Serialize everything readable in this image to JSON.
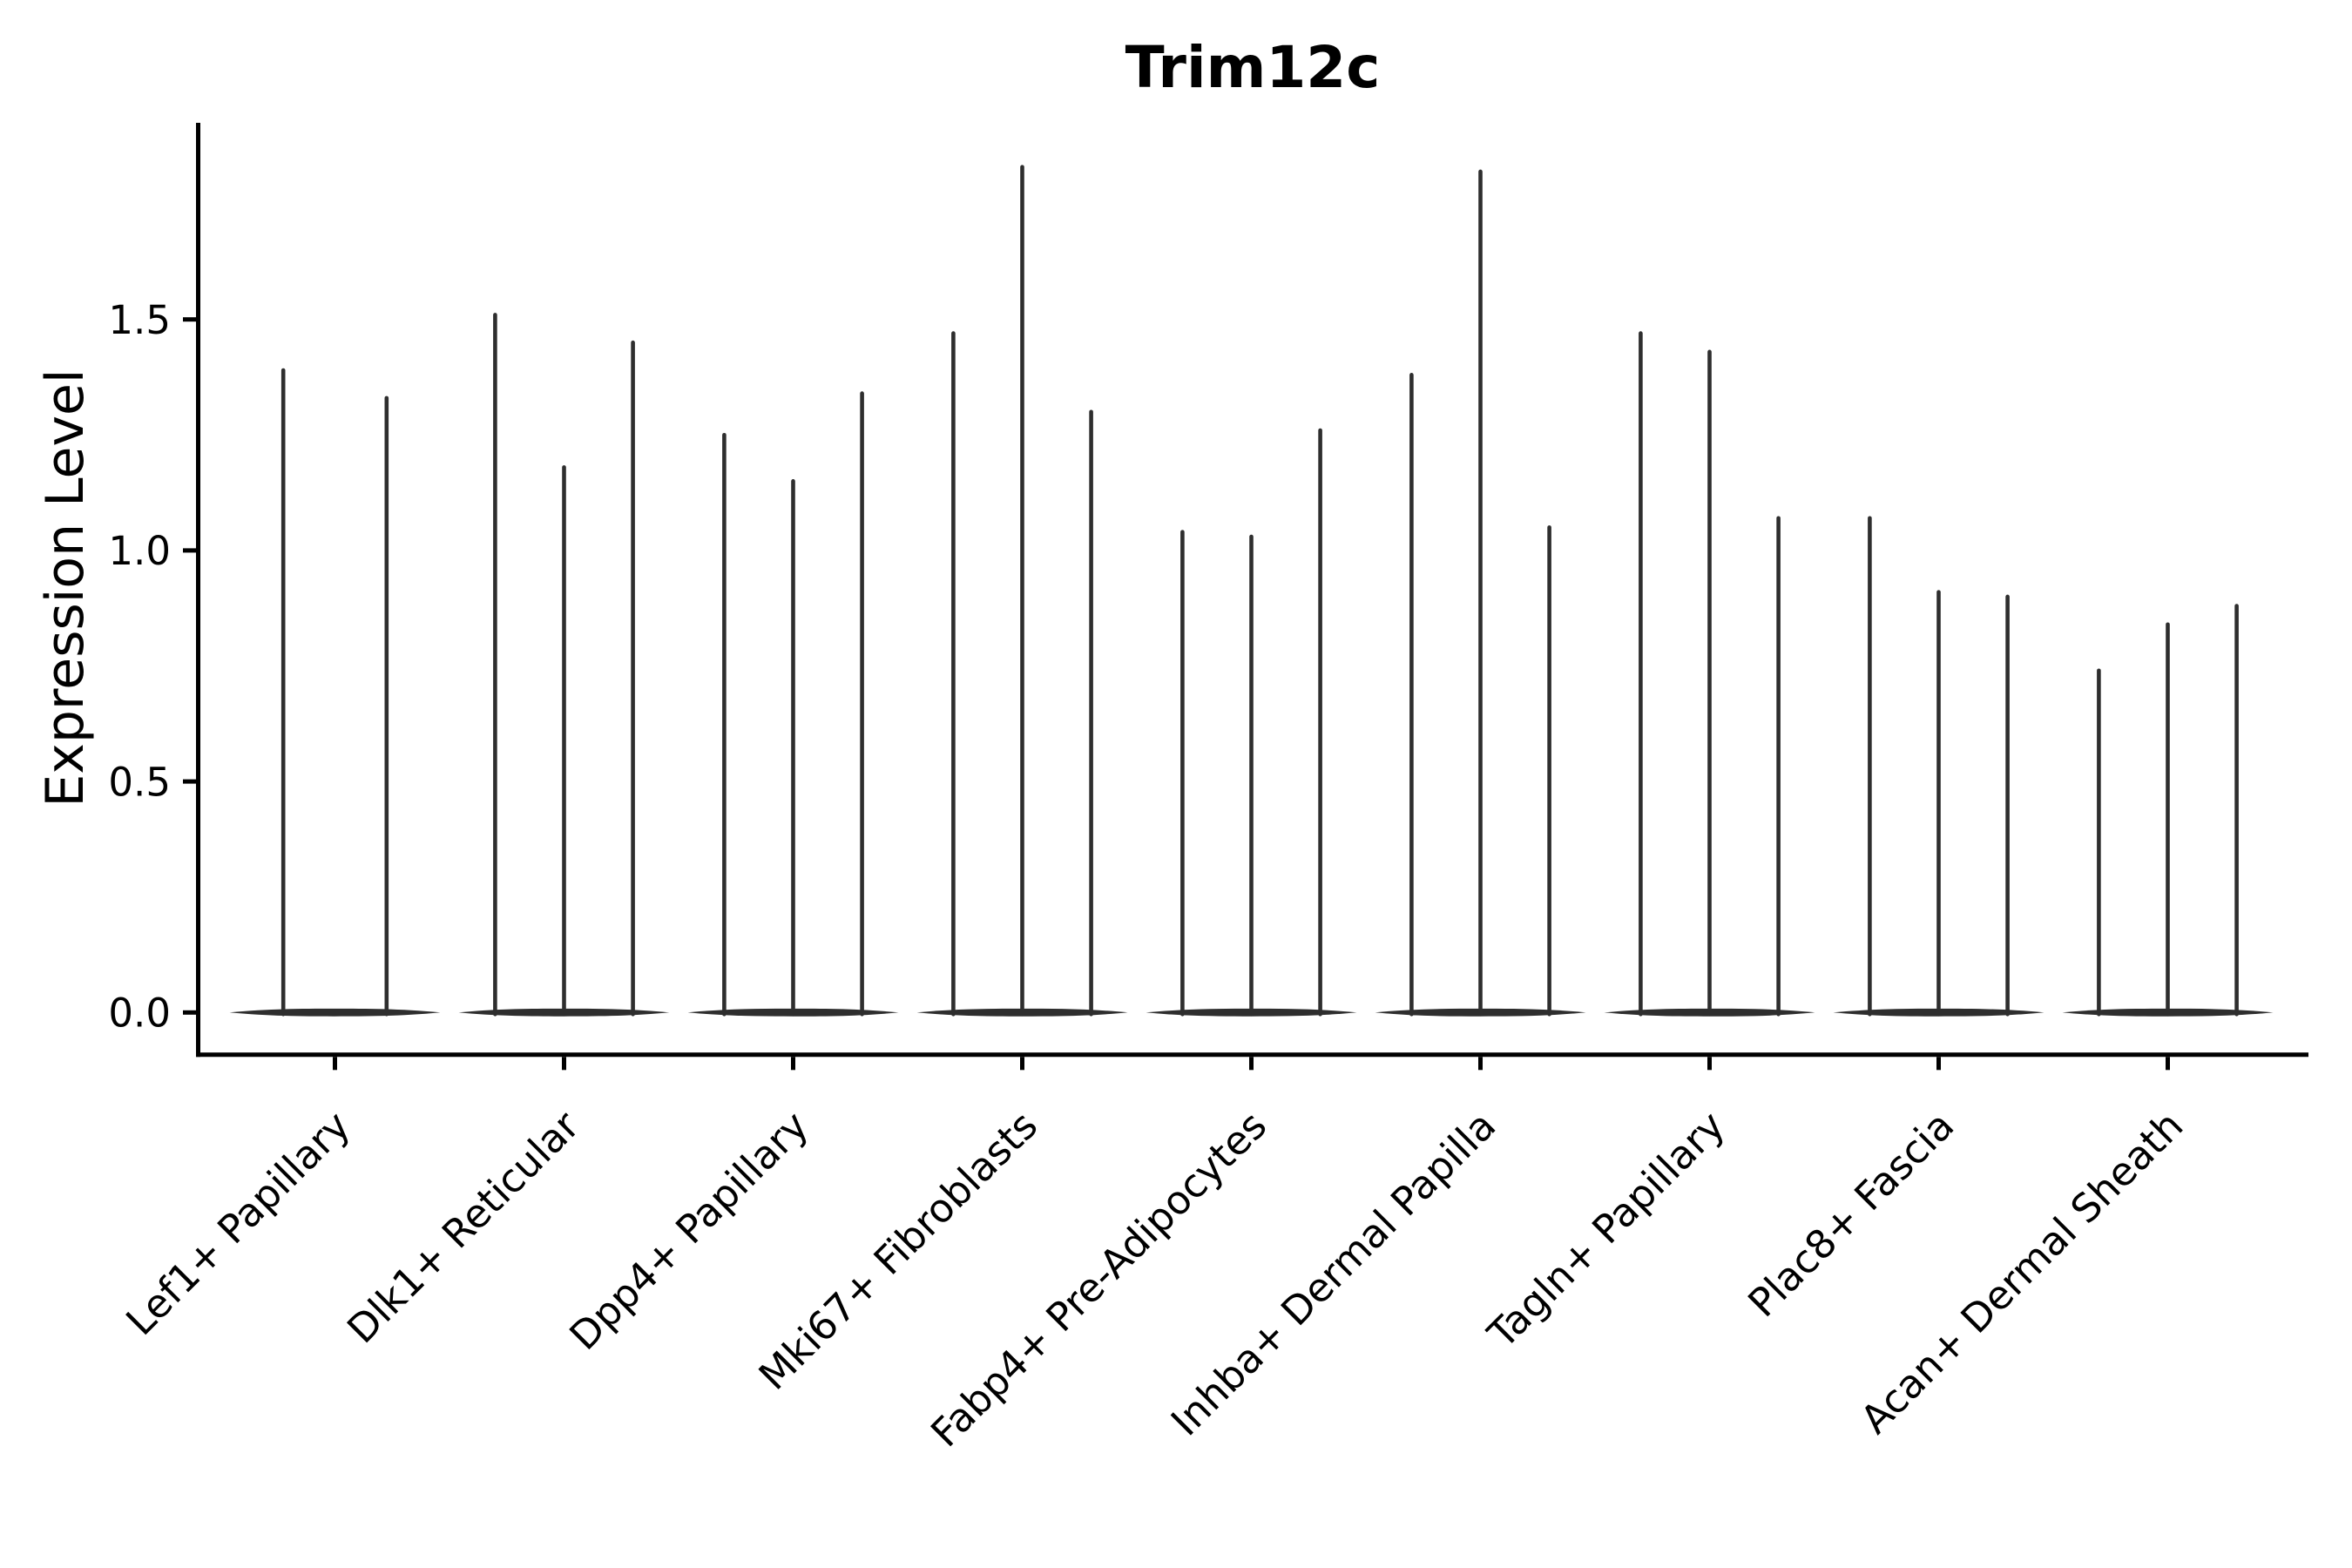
{
  "chart_data": {
    "type": "violin",
    "title": "Trim12c",
    "ylabel": "Expression Level",
    "xlabel": "",
    "ylim": [
      -0.09,
      1.93
    ],
    "yticks": [
      0,
      0.5,
      1.0,
      1.5
    ],
    "ytick_labels": [
      "0.0",
      "0.5",
      "1.0",
      "1.5"
    ],
    "grid": false,
    "legend": false,
    "description": "Violin plot of Trim12c expression; each category shows 2-3 extremely narrow violins (mass concentrated at 0 with a thin tail). violin_max_expression lists the top of each violin tail in expression-level units.",
    "categories": [
      "Lef1+ Papillary",
      "Dlk1+ Reticular",
      "Dpp4+ Papillary",
      "Mki67+ Fibroblasts",
      "Fabp4+ Pre-Adipocytes",
      "Inhba+ Dermal Papilla",
      "Tagln+ Papillary",
      "Plac8+ Fascia",
      "Acan+ Dermal Sheath"
    ],
    "groups": [
      {
        "category": "Lef1+ Papillary",
        "violin_max_expression": [
          1.39,
          1.33
        ]
      },
      {
        "category": "Dlk1+ Reticular",
        "violin_max_expression": [
          1.51,
          1.18,
          1.45
        ]
      },
      {
        "category": "Dpp4+ Papillary",
        "violin_max_expression": [
          1.25,
          1.15,
          1.34
        ]
      },
      {
        "category": "Mki67+ Fibroblasts",
        "violin_max_expression": [
          1.47,
          1.83,
          1.3
        ]
      },
      {
        "category": "Fabp4+ Pre-Adipocytes",
        "violin_max_expression": [
          1.04,
          1.03,
          1.26
        ]
      },
      {
        "category": "Inhba+ Dermal Papilla",
        "violin_max_expression": [
          1.38,
          1.82,
          1.05
        ]
      },
      {
        "category": "Tagln+ Papillary",
        "violin_max_expression": [
          1.47,
          1.43,
          1.07
        ]
      },
      {
        "category": "Plac8+ Fascia",
        "violin_max_expression": [
          1.07,
          0.91,
          0.9
        ]
      },
      {
        "category": "Acan+ Dermal Sheath",
        "violin_max_expression": [
          0.74,
          0.84,
          0.88
        ]
      }
    ],
    "colors": {
      "violin": "#2e2e2e",
      "axis": "#000000",
      "text": "#000000",
      "background": "#ffffff"
    }
  }
}
